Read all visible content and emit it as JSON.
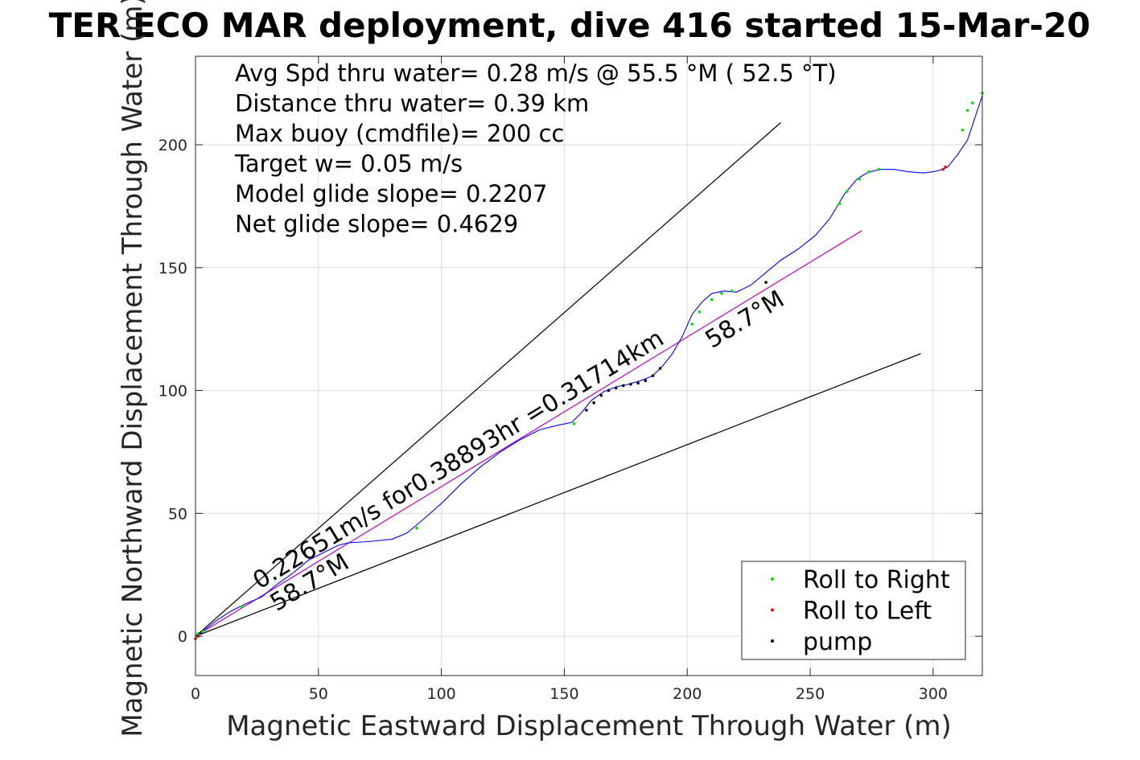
{
  "chart_data": {
    "type": "scatter",
    "title": "TER ECO MAR deployment, dive 416 started 15-Mar-20",
    "xlabel": "Magnetic Eastward Displacement Through Water (m)",
    "ylabel": "Magnetic Northward Displacement Through Water (m)",
    "xlim": [
      0,
      320
    ],
    "ylim": [
      -16,
      236
    ],
    "xticks": [
      0,
      50,
      100,
      150,
      200,
      250,
      300
    ],
    "yticks": [
      0,
      50,
      100,
      150,
      200
    ],
    "grid": true,
    "legend_position": "bottom-right",
    "stats": [
      "Avg Spd thru water=  0.28 m/s @  55.5 °M ( 52.5 °T)",
      "Distance thru water=  0.39 km",
      "Max buoy (cmdfile)= 200 cc",
      "Target w= 0.05 m/s",
      "Model glide slope= 0.2207",
      "Net glide slope= 0.4629"
    ],
    "annotations": [
      {
        "text": "0.22651m/s for0.38893hr =0.31714km",
        "x": 26,
        "y": 19,
        "angle": 31.3
      },
      {
        "text": "58.7°M",
        "x": 210,
        "y": 117,
        "angle": 31.3
      },
      {
        "text": "58.7°M",
        "x": 33,
        "y": 10,
        "angle": 31.3
      }
    ],
    "reference_lines": [
      {
        "name": "upper",
        "x": [
          0,
          238
        ],
        "y": [
          0,
          209
        ],
        "color": "#000000"
      },
      {
        "name": "lower",
        "x": [
          0,
          295
        ],
        "y": [
          0,
          115
        ],
        "color": "#000000"
      },
      {
        "name": "net-displacement",
        "x": [
          0,
          271
        ],
        "y": [
          0,
          165
        ],
        "color": "#c000c0"
      }
    ],
    "track": {
      "color": "#0000ff",
      "x": [
        0,
        3,
        8,
        14,
        20,
        27,
        33,
        40,
        46,
        52,
        58,
        62,
        70,
        80,
        86,
        92,
        100,
        108,
        116,
        124,
        132,
        140,
        148,
        153,
        157,
        161,
        166,
        171,
        176,
        181,
        186,
        190,
        194,
        198,
        202,
        206,
        210,
        215,
        220,
        226,
        232,
        238,
        245,
        252,
        258,
        264,
        269,
        273,
        278,
        284,
        290,
        296,
        300,
        304,
        306,
        310,
        314,
        316,
        318,
        320
      ],
      "y": [
        0,
        2,
        6,
        10,
        13,
        16,
        21,
        26,
        31,
        34,
        37,
        38,
        38.5,
        39.5,
        42,
        47,
        54,
        62,
        69,
        75,
        80,
        84,
        86,
        87,
        91,
        96,
        99.5,
        101.5,
        102.5,
        104,
        106,
        110,
        115,
        122,
        131,
        136,
        139.5,
        140.5,
        140,
        143,
        148,
        153,
        157.5,
        163,
        170,
        180,
        186,
        188.5,
        190,
        190,
        189,
        188.5,
        189,
        190,
        191,
        196,
        202,
        208,
        214,
        220
      ]
    },
    "series": [
      {
        "name": "Roll to Right",
        "color": "#00e000",
        "x": [
          1,
          3,
          19,
          90,
          154,
          202,
          205,
          210,
          214,
          218,
          262,
          265,
          270,
          274,
          278,
          312,
          314,
          316,
          320
        ],
        "y": [
          1,
          2,
          12,
          44,
          86.5,
          127,
          132,
          137,
          139.5,
          140.5,
          176,
          181,
          186,
          189,
          190,
          206,
          214,
          217,
          221
        ]
      },
      {
        "name": "Roll to Left",
        "color": "#ff0000",
        "x": [
          0,
          1,
          304,
          305
        ],
        "y": [
          -1,
          0,
          190,
          191
        ]
      },
      {
        "name": "pump",
        "color": "#000000",
        "x": [
          159,
          162,
          165,
          168,
          171,
          174,
          177,
          180,
          183,
          186,
          189,
          232
        ],
        "y": [
          92,
          95,
          98,
          100,
          101,
          102,
          102.5,
          103,
          104,
          106,
          109,
          144
        ]
      }
    ]
  }
}
